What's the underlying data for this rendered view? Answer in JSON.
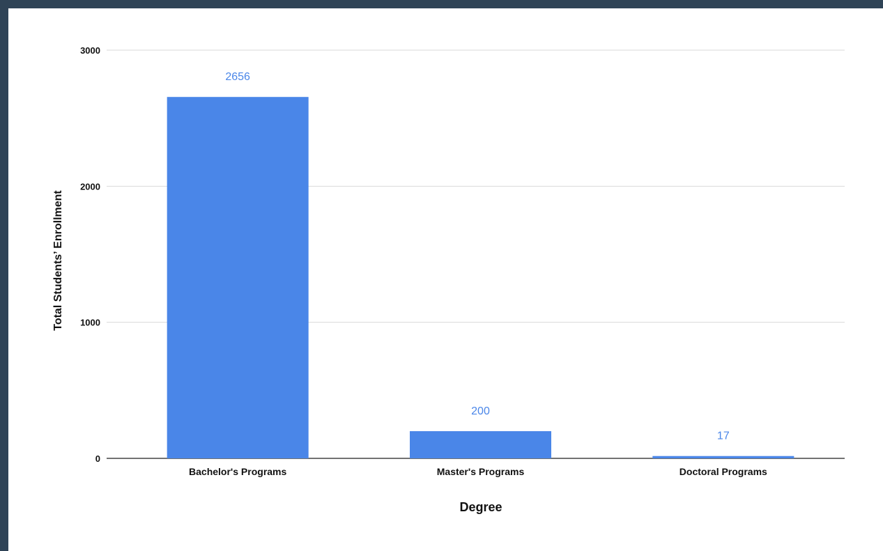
{
  "chart_data": {
    "type": "bar",
    "categories": [
      "Bachelor's Programs",
      "Master's Programs",
      "Doctoral Programs"
    ],
    "values": [
      2656,
      200,
      17
    ],
    "data_labels": [
      "2656",
      "200",
      "17"
    ],
    "title": "",
    "xlabel": "Degree",
    "ylabel": "Total Students’ Enrollment",
    "ylim": [
      0,
      3000
    ],
    "yticks": [
      "0",
      "1000",
      "2000",
      "3000"
    ],
    "grid": true,
    "legend": "none",
    "bar_color": "#4a86e8",
    "data_label_color": "#4a86e8"
  }
}
